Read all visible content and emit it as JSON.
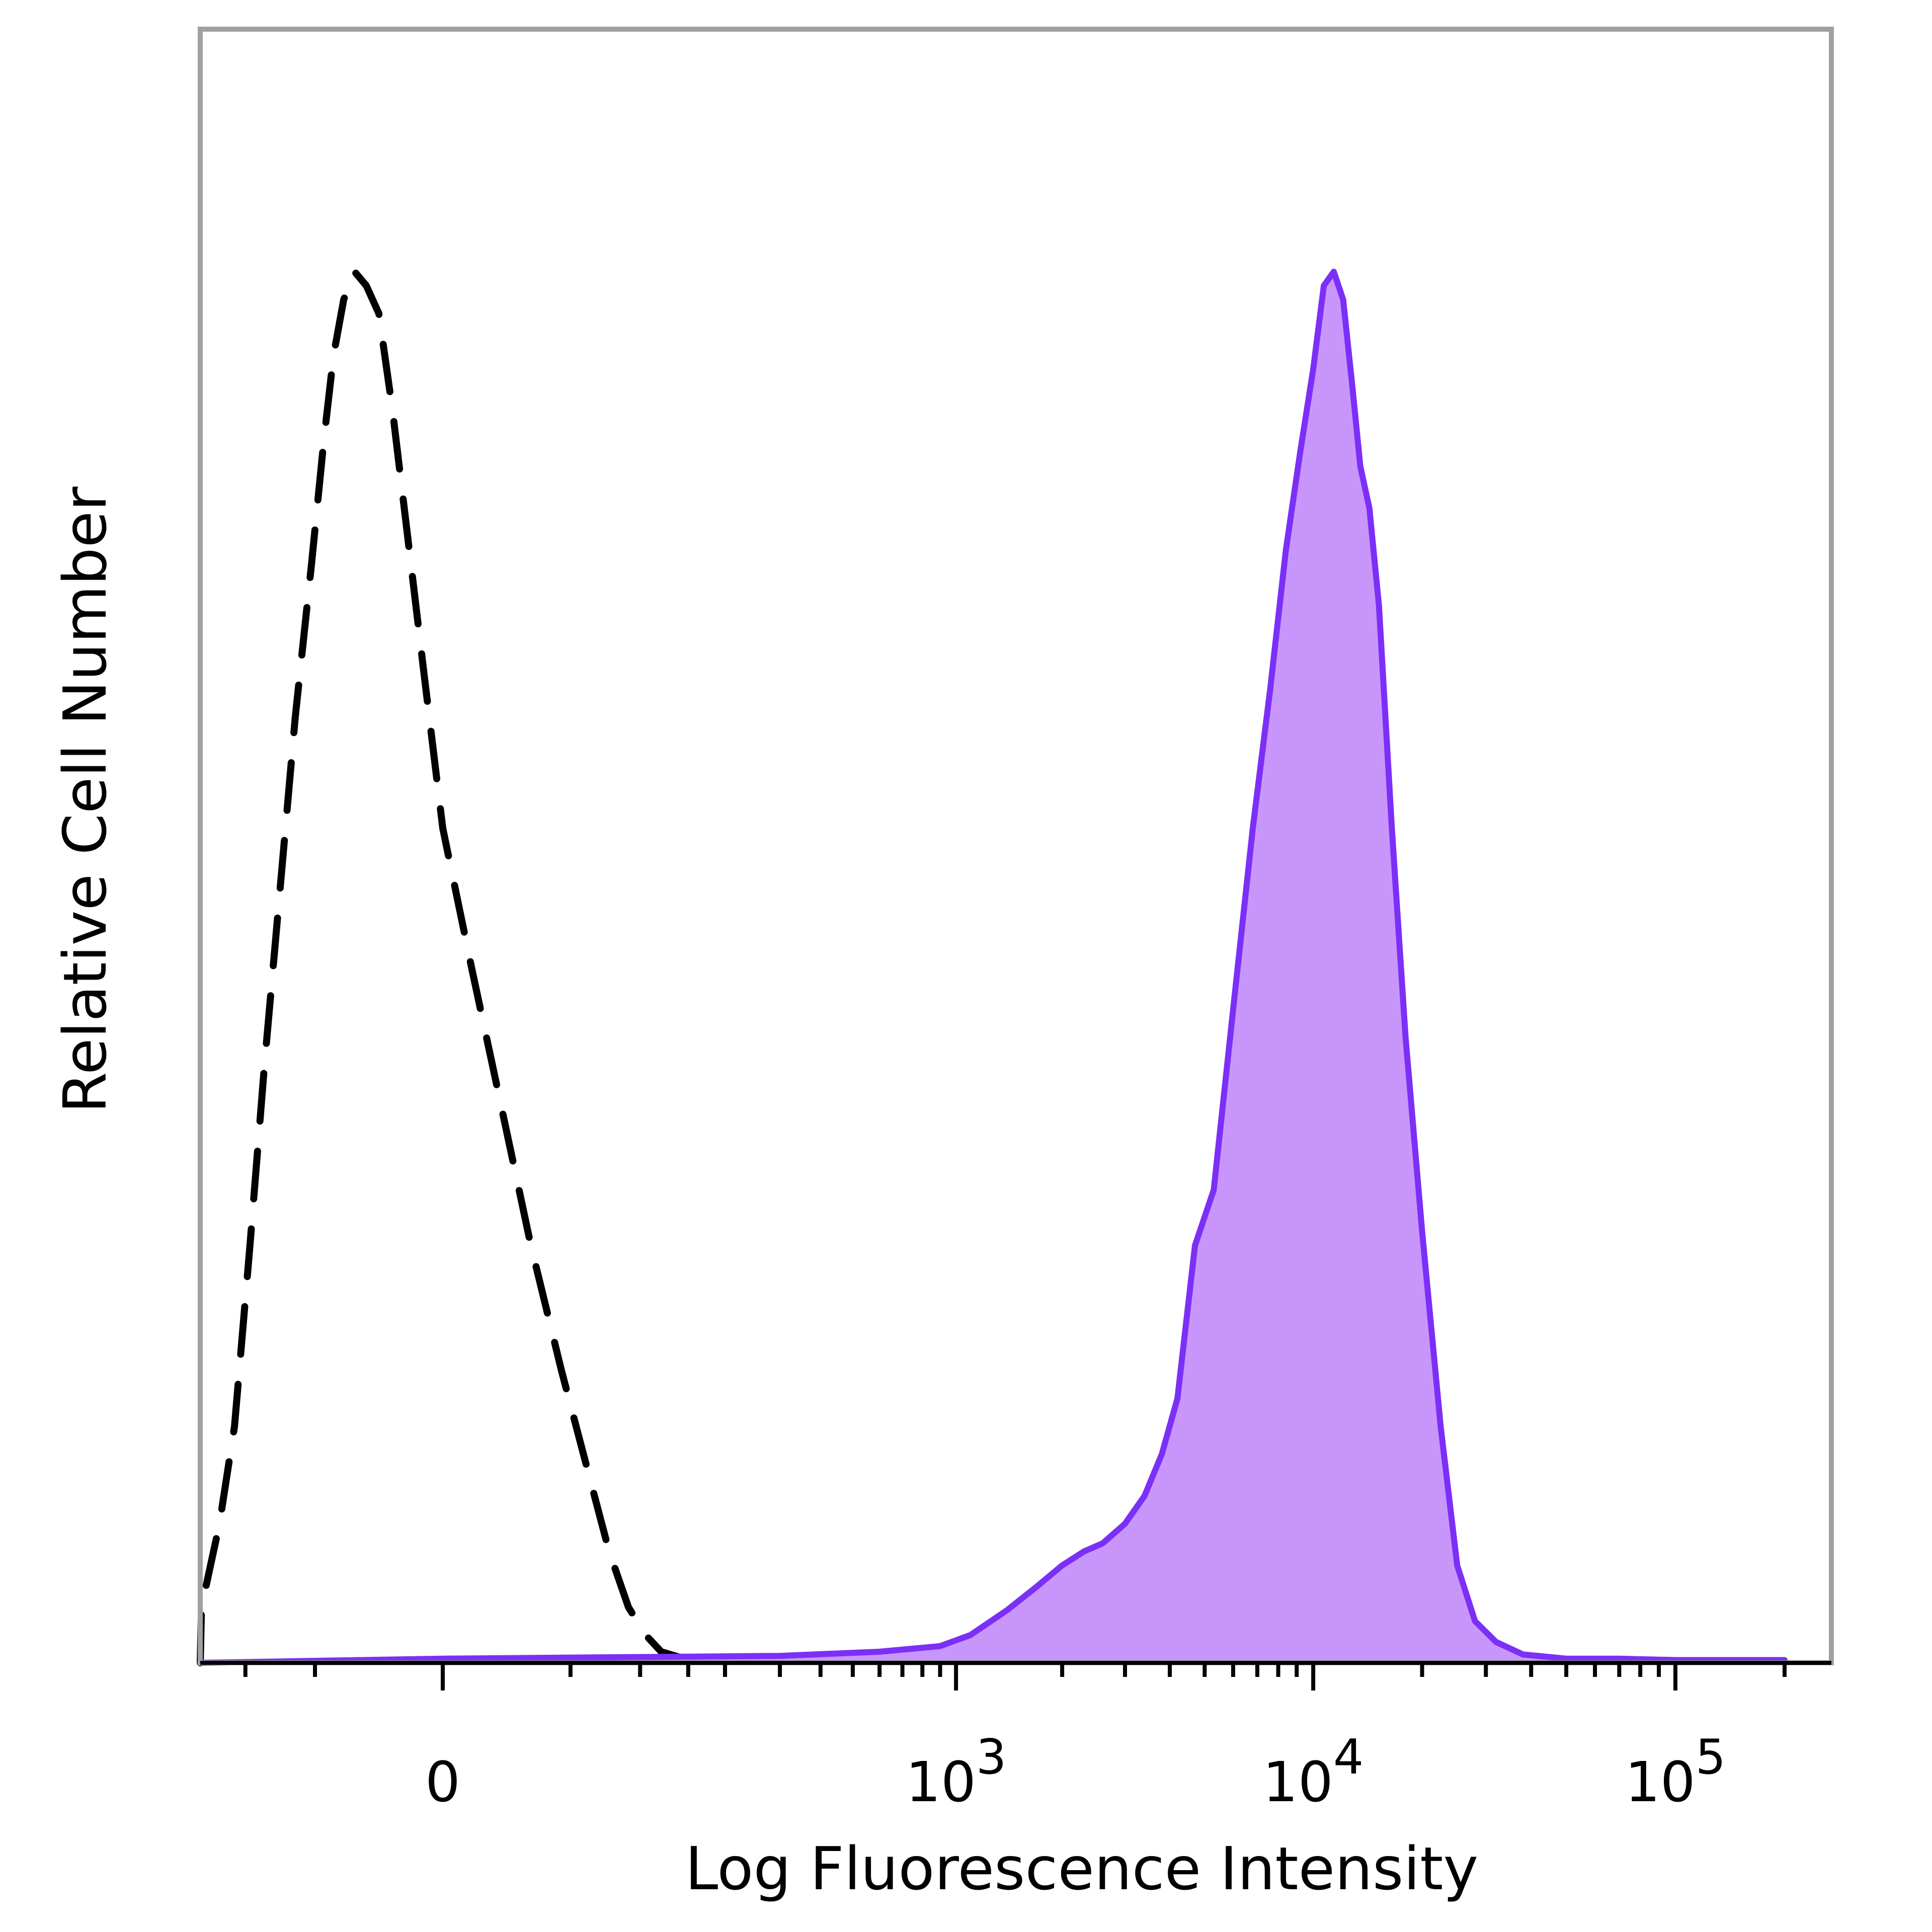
{
  "chart_data": {
    "type": "area",
    "xlabel": "Log Fluorescence Intensity",
    "ylabel": "Relative Cell Number",
    "x_scale": "biexponential",
    "xlim": [
      -250,
      200000
    ],
    "ylim": [
      0,
      1.1
    ],
    "x_tick_labels": [
      {
        "value": 0,
        "base": "0",
        "exp": ""
      },
      {
        "value": 1000,
        "base": "10",
        "exp": "3"
      },
      {
        "value": 10000,
        "base": "10",
        "exp": "4"
      },
      {
        "value": 100000,
        "base": "10",
        "exp": "5"
      }
    ],
    "series": [
      {
        "style": "dashed",
        "fill": "none",
        "stroke": "#000000",
        "x": [
          -170,
          -145,
          -125,
          -110,
          -96,
          -84,
          -72,
          -62,
          -52,
          -45,
          -40,
          -35,
          -30,
          -25,
          -20,
          -15,
          -10,
          -5,
          0,
          8,
          18,
          30,
          45,
          60,
          75,
          90,
          105,
          120,
          140,
          170,
          220,
          300,
          450,
          700
        ],
        "y": [
          0.0,
          0.04,
          0.1,
          0.17,
          0.3,
          0.43,
          0.56,
          0.68,
          0.79,
          0.88,
          0.94,
          0.98,
          1.0,
          0.99,
          0.97,
          0.9,
          0.81,
          0.71,
          0.6,
          0.5,
          0.4,
          0.3,
          0.21,
          0.14,
          0.08,
          0.04,
          0.02,
          0.008,
          0.004,
          0.003,
          0.003,
          0.004,
          0.004,
          0.003
        ]
      },
      {
        "style": "solid",
        "fill": "#c896fa",
        "stroke": "#7b2ff7",
        "x": [
          -250,
          0,
          300,
          600,
          900,
          1100,
          1400,
          1700,
          2000,
          2300,
          2600,
          3000,
          3400,
          3800,
          4200,
          4700,
          5300,
          6000,
          6800,
          7600,
          8400,
          9200,
          10000,
          10700,
          11400,
          12100,
          12800,
          13500,
          14300,
          15200,
          16500,
          18000,
          20000,
          22500,
          25000,
          28000,
          32000,
          38000,
          50000,
          70000,
          100000,
          200000
        ],
        "y": [
          0.0,
          0.003,
          0.005,
          0.008,
          0.012,
          0.02,
          0.038,
          0.055,
          0.07,
          0.08,
          0.086,
          0.1,
          0.12,
          0.15,
          0.19,
          0.3,
          0.34,
          0.47,
          0.6,
          0.7,
          0.8,
          0.87,
          0.93,
          0.99,
          1.0,
          0.98,
          0.92,
          0.86,
          0.83,
          0.76,
          0.6,
          0.45,
          0.31,
          0.17,
          0.07,
          0.03,
          0.015,
          0.006,
          0.003,
          0.003,
          0.002,
          0.002
        ]
      }
    ],
    "grid": false,
    "legend": "none"
  }
}
